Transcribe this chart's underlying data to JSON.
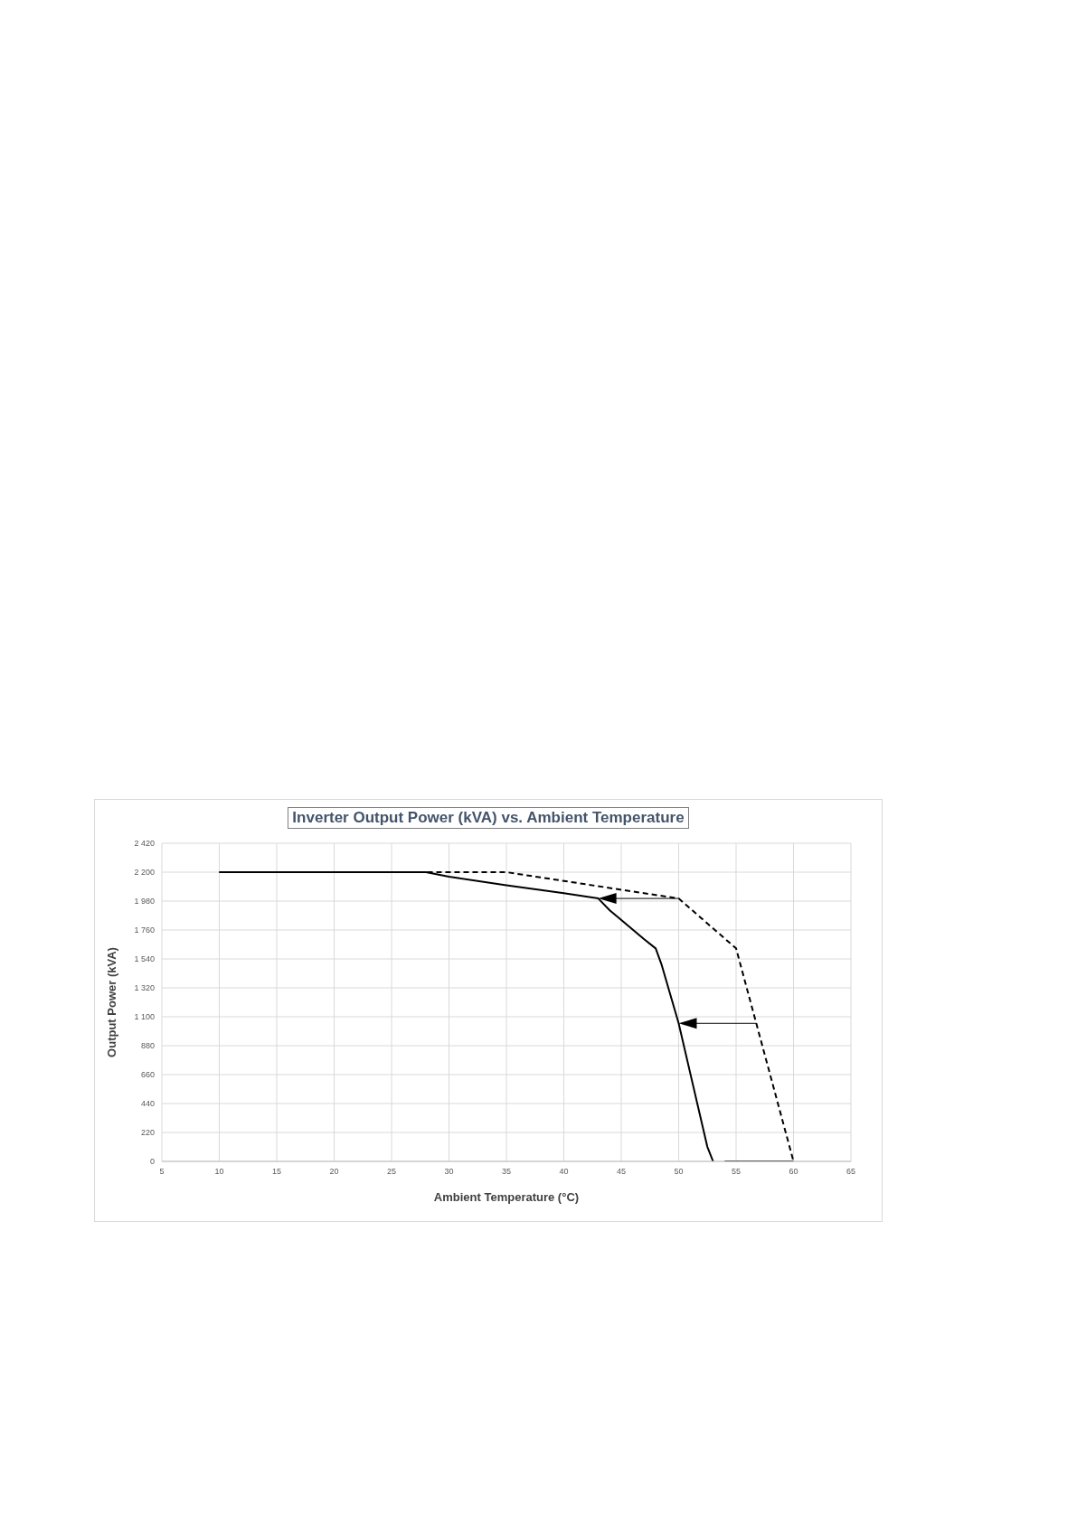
{
  "chart_data": {
    "type": "line",
    "title": "Inverter Output Power (kVA) vs. Ambient Temperature",
    "xlabel": "Ambient Temperature (°C)",
    "ylabel": "Output Power (kVA)",
    "xlim": [
      5,
      65
    ],
    "xticks": [
      5,
      10,
      15,
      20,
      25,
      30,
      35,
      40,
      45,
      50,
      55,
      60,
      65
    ],
    "ylim": [
      0,
      2420
    ],
    "yticks": [
      0,
      220,
      440,
      660,
      880,
      {
        "value": 1100,
        "label": "1 100"
      },
      {
        "value": 1320,
        "label": "1 320"
      },
      {
        "value": 1540,
        "label": "1 540"
      },
      {
        "value": 1760,
        "label": "1 760"
      },
      {
        "value": 1980,
        "label": "1 980"
      },
      {
        "value": 2200,
        "label": "2 200"
      },
      {
        "value": 2420,
        "label": "2 420"
      }
    ],
    "grid": true,
    "marker": "none",
    "series": [
      {
        "color": "#000000",
        "line_style": "solid",
        "x": [
          10,
          28,
          30,
          35,
          40,
          43,
          44,
          47,
          48,
          48.5,
          50,
          52.5,
          53,
          53.5,
          54,
          60
        ],
        "values": [
          2200,
          2200,
          2165,
          2100,
          2040,
          2000,
          1910,
          1690,
          1620,
          1500,
          1050,
          110,
          0,
          null,
          0,
          0
        ]
      },
      {
        "color": "#000000",
        "line_style": "dashed",
        "x": [
          10,
          35,
          50,
          55,
          60
        ],
        "values": [
          2200,
          2200,
          2000,
          1620,
          0
        ]
      }
    ]
  }
}
